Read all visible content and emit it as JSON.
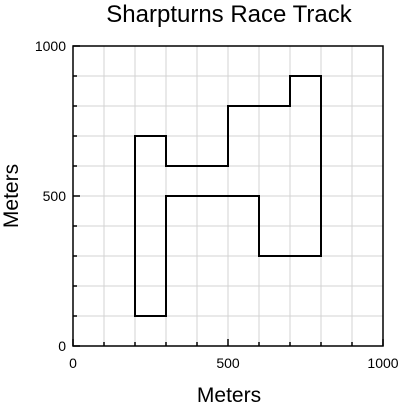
{
  "colors": {
    "background": "#ffffff",
    "grid": "#d3d3d3",
    "axis": "#000000",
    "track": "#000000"
  },
  "chart_data": {
    "type": "line",
    "title": "Sharpturns Race Track",
    "xlabel": "Meters",
    "ylabel": "Meters",
    "xlim": [
      0,
      1000
    ],
    "ylim": [
      0,
      1000
    ],
    "x_tick_labels": [
      "0",
      "500",
      "1000"
    ],
    "y_tick_labels": [
      "0",
      "500",
      "1000"
    ],
    "major_ticks": [
      0,
      500,
      1000
    ],
    "minor_tick_step": 100,
    "grid": true,
    "series": [
      {
        "closed": true,
        "points": [
          [
            200,
            100
          ],
          [
            300,
            100
          ],
          [
            300,
            500
          ],
          [
            600,
            500
          ],
          [
            600,
            300
          ],
          [
            800,
            300
          ],
          [
            800,
            900
          ],
          [
            700,
            900
          ],
          [
            700,
            800
          ],
          [
            500,
            800
          ],
          [
            500,
            600
          ],
          [
            300,
            600
          ],
          [
            300,
            700
          ],
          [
            200,
            700
          ],
          [
            200,
            100
          ]
        ]
      }
    ]
  }
}
